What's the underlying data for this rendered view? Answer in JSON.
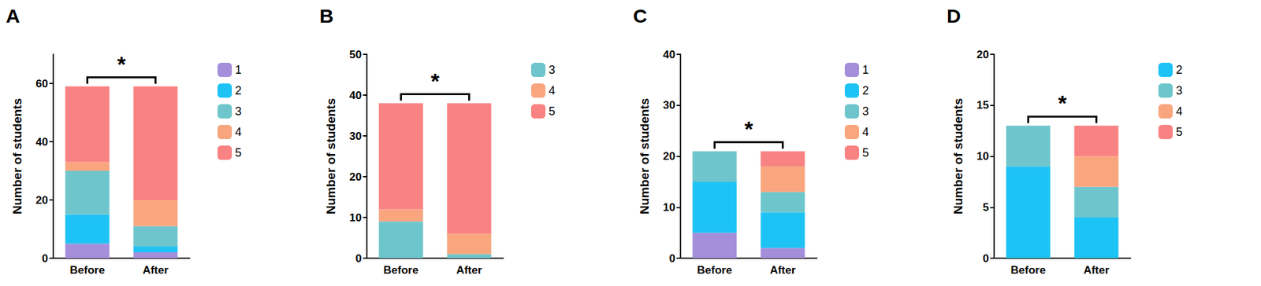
{
  "chart_data": [
    {
      "type": "bar",
      "title": "A",
      "y_label": "Number of students",
      "annotation": "*",
      "categories": [
        "Before",
        "After"
      ],
      "stacked": true,
      "legend": "right",
      "grid": false,
      "ylim": [
        0,
        70
      ],
      "yticks": [
        0,
        20,
        40,
        60
      ],
      "series": [
        {
          "name": "1",
          "color": "#a58fdb",
          "values": [
            5,
            2
          ]
        },
        {
          "name": "2",
          "color": "#1ec3f5",
          "values": [
            10,
            2
          ]
        },
        {
          "name": "3",
          "color": "#6ec6cc",
          "values": [
            15,
            7
          ]
        },
        {
          "name": "4",
          "color": "#f9a67f",
          "values": [
            3,
            9
          ]
        },
        {
          "name": "5",
          "color": "#f98282",
          "values": [
            26,
            39
          ]
        }
      ]
    },
    {
      "type": "bar",
      "title": "B",
      "y_label": "Number of students",
      "annotation": "*",
      "categories": [
        "Before",
        "After"
      ],
      "stacked": true,
      "legend": "right",
      "grid": false,
      "ylim": [
        0,
        50
      ],
      "yticks": [
        0,
        10,
        20,
        30,
        40,
        50
      ],
      "series": [
        {
          "name": "3",
          "color": "#6ec6cc",
          "values": [
            9,
            1
          ]
        },
        {
          "name": "4",
          "color": "#f9a67f",
          "values": [
            3,
            5
          ]
        },
        {
          "name": "5",
          "color": "#f98282",
          "values": [
            26,
            32
          ]
        }
      ]
    },
    {
      "type": "bar",
      "title": "C",
      "y_label": "Number of students",
      "annotation": "*",
      "categories": [
        "Before",
        "After"
      ],
      "stacked": true,
      "legend": "right",
      "grid": false,
      "ylim": [
        0,
        40
      ],
      "yticks": [
        0,
        10,
        20,
        30,
        40
      ],
      "series": [
        {
          "name": "1",
          "color": "#a58fdb",
          "values": [
            5,
            2
          ]
        },
        {
          "name": "2",
          "color": "#1ec3f5",
          "values": [
            10,
            7
          ]
        },
        {
          "name": "3",
          "color": "#6ec6cc",
          "values": [
            6,
            4
          ]
        },
        {
          "name": "4",
          "color": "#f9a67f",
          "values": [
            0,
            5
          ]
        },
        {
          "name": "5",
          "color": "#f98282",
          "values": [
            0,
            3
          ]
        }
      ]
    },
    {
      "type": "bar",
      "title": "D",
      "y_label": "Number of students",
      "annotation": "*",
      "categories": [
        "Before",
        "After"
      ],
      "stacked": true,
      "legend": "right",
      "grid": false,
      "ylim": [
        0,
        20
      ],
      "yticks": [
        0,
        5,
        10,
        15,
        20
      ],
      "series": [
        {
          "name": "2",
          "color": "#1ec3f5",
          "values": [
            9,
            4
          ]
        },
        {
          "name": "3",
          "color": "#6ec6cc",
          "values": [
            4,
            3
          ]
        },
        {
          "name": "4",
          "color": "#f9a67f",
          "values": [
            0,
            3
          ]
        },
        {
          "name": "5",
          "color": "#f98282",
          "values": [
            0,
            3
          ]
        }
      ]
    }
  ]
}
